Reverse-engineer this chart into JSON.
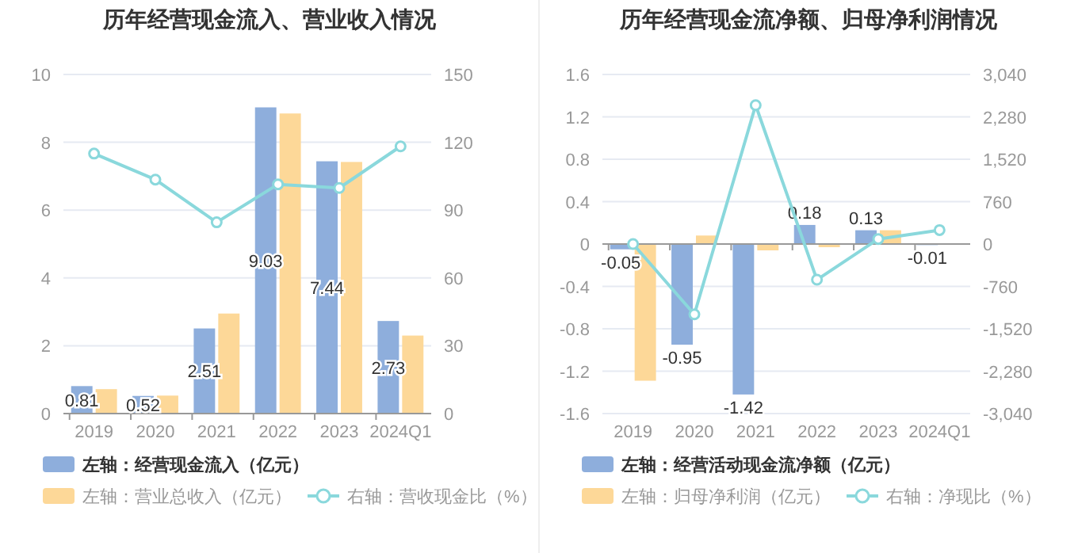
{
  "chart_data": [
    {
      "type": "bar",
      "title": "历年经营现金流入、营业收入情况",
      "categories": [
        "2019",
        "2020",
        "2021",
        "2022",
        "2023",
        "2024Q1"
      ],
      "series": [
        {
          "name": "左轴：经营现金流入（亿元）",
          "color": "#8eaedc",
          "values": [
            0.81,
            0.52,
            2.51,
            9.03,
            7.44,
            2.73
          ],
          "value_labels": [
            "0.81",
            "0.52",
            "2.51",
            "9.03",
            "7.44",
            "2.73"
          ]
        },
        {
          "name": "左轴：营业总收入（亿元）",
          "color": "#fdd898",
          "values": [
            0.72,
            0.53,
            2.95,
            8.85,
            7.42,
            2.3
          ]
        },
        {
          "name": "右轴：营收现金比（%）",
          "color": "#8ad8dc",
          "type": "line",
          "axis": "y2",
          "marker": "circle",
          "values": [
            115,
            103.5,
            84.6,
            101.4,
            99.8,
            118.2
          ]
        }
      ],
      "ylim": [
        0,
        10
      ],
      "yticks": [
        0,
        2,
        4,
        6,
        8,
        10
      ],
      "y2lim": [
        0,
        150
      ],
      "y2ticks": [
        0,
        30,
        60,
        90,
        120,
        150
      ],
      "grid": "y",
      "legend": "bottom"
    },
    {
      "type": "bar",
      "title": "历年经营现金流净额、归母净利润情况",
      "categories": [
        "2019",
        "2020",
        "2021",
        "2022",
        "2023",
        "2024Q1"
      ],
      "series": [
        {
          "name": "左轴：经营活动现金流净额（亿元）",
          "color": "#8eaedc",
          "values": [
            -0.05,
            -0.95,
            -1.42,
            0.18,
            0.13,
            -0.01
          ],
          "value_labels": [
            "-0.05",
            "-0.95",
            "-1.42",
            "0.18",
            "0.13",
            "-0.01"
          ]
        },
        {
          "name": "左轴：归母净利润（亿元）",
          "color": "#fdd898",
          "values": [
            -1.29,
            0.08,
            -0.06,
            -0.03,
            0.13,
            0
          ]
        },
        {
          "name": "右轴：净现比（%）",
          "color": "#8ad8dc",
          "type": "line",
          "axis": "y2",
          "marker": "circle",
          "values": [
            0,
            -1260,
            2490,
            -640,
            90,
            250
          ]
        }
      ],
      "ylim": [
        -1.6,
        1.6
      ],
      "yticks": [
        -1.6,
        -1.2,
        -0.8,
        -0.4,
        0,
        0.4,
        0.8,
        1.2,
        1.6
      ],
      "y2lim": [
        -3040,
        3040
      ],
      "y2ticks": [
        {
          "value": -3040,
          "label": "-3,040"
        },
        {
          "value": -2280,
          "label": "-2,280"
        },
        {
          "value": -1520,
          "label": "-1,520"
        },
        -760,
        0,
        760,
        {
          "value": 1520,
          "label": "1,520"
        },
        {
          "value": 2280,
          "label": "2,280"
        },
        {
          "value": 3040,
          "label": "3,040"
        }
      ],
      "grid": "y",
      "legend": "bottom"
    }
  ]
}
